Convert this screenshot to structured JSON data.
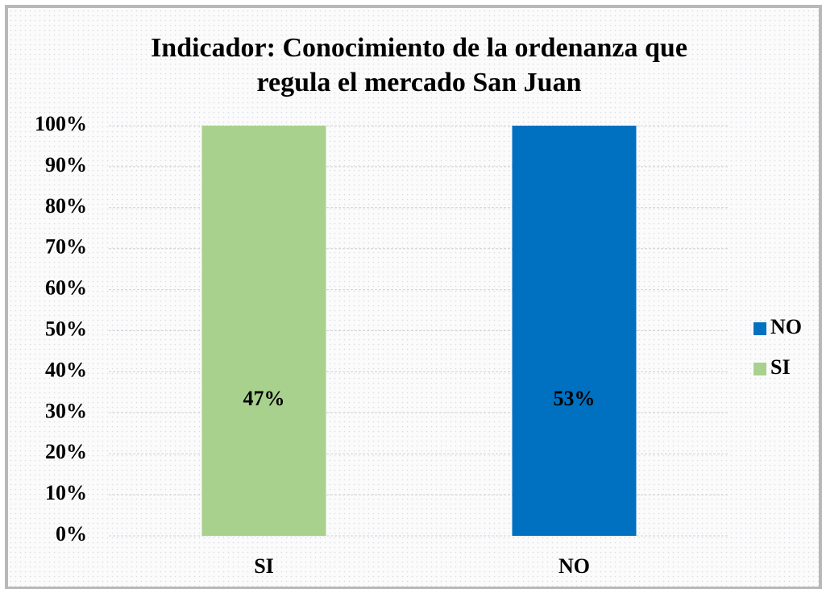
{
  "chart_data": {
    "type": "bar",
    "stacked": "percent",
    "title": [
      "Indicador: Conocimiento de la ordenanza que",
      "regula el mercado San Juan"
    ],
    "categories": [
      "SI",
      "NO"
    ],
    "series": [
      {
        "name": "SI",
        "color": "#a9d18e",
        "values": [
          47,
          0
        ],
        "value_labels": [
          "47%",
          null
        ]
      },
      {
        "name": "NO",
        "color": "#0070c0",
        "values": [
          0,
          53
        ],
        "value_labels": [
          null,
          "53%"
        ]
      }
    ],
    "ylim": [
      0,
      100
    ],
    "yticks": [
      {
        "value": 0,
        "label": "0%"
      },
      {
        "value": 10,
        "label": "10%"
      },
      {
        "value": 20,
        "label": "20%"
      },
      {
        "value": 30,
        "label": "30%"
      },
      {
        "value": 40,
        "label": "40%"
      },
      {
        "value": 50,
        "label": "50%"
      },
      {
        "value": 60,
        "label": "60%"
      },
      {
        "value": 70,
        "label": "70%"
      },
      {
        "value": 80,
        "label": "80%"
      },
      {
        "value": 90,
        "label": "90%"
      },
      {
        "value": 100,
        "label": "100%"
      }
    ],
    "grid": true,
    "legend": "right"
  }
}
